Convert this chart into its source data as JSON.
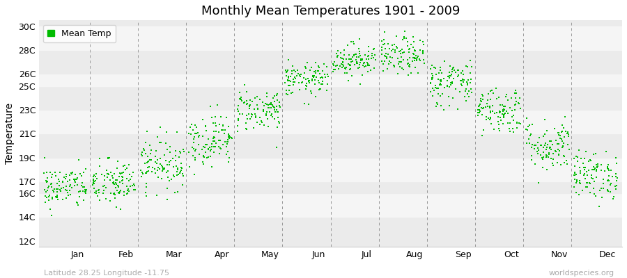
{
  "title": "Monthly Mean Temperatures 1901 - 2009",
  "ylabel": "Temperature",
  "xlabel_lat_lon": "Latitude 28.25 Longitude -11.75",
  "watermark": "worldspecies.org",
  "legend_label": "Mean Temp",
  "marker_color": "#00BB00",
  "marker_size": 3.5,
  "bg_color": "#ffffff",
  "plot_bg_color": "#ebebeb",
  "alt_band_color": "#f5f5f5",
  "ytick_labels": [
    "12C",
    "14C",
    "16C",
    "17C",
    "19C",
    "21C",
    "23C",
    "25C",
    "26C",
    "28C",
    "30C"
  ],
  "ytick_values": [
    12,
    14,
    16,
    17,
    19,
    21,
    23,
    25,
    26,
    28,
    30
  ],
  "ylim": [
    11.5,
    30.5
  ],
  "months": [
    "Jan",
    "Feb",
    "Mar",
    "Apr",
    "May",
    "Jun",
    "Jul",
    "Aug",
    "Sep",
    "Oct",
    "Nov",
    "Dec"
  ],
  "n_years": 109,
  "seed": 42,
  "monthly_means": [
    16.5,
    16.8,
    18.5,
    20.5,
    23.0,
    25.5,
    27.2,
    27.5,
    25.3,
    23.0,
    20.0,
    17.5
  ],
  "monthly_stds": [
    0.9,
    1.0,
    1.1,
    1.1,
    0.9,
    0.7,
    0.7,
    0.8,
    1.0,
    1.0,
    1.1,
    1.0
  ]
}
